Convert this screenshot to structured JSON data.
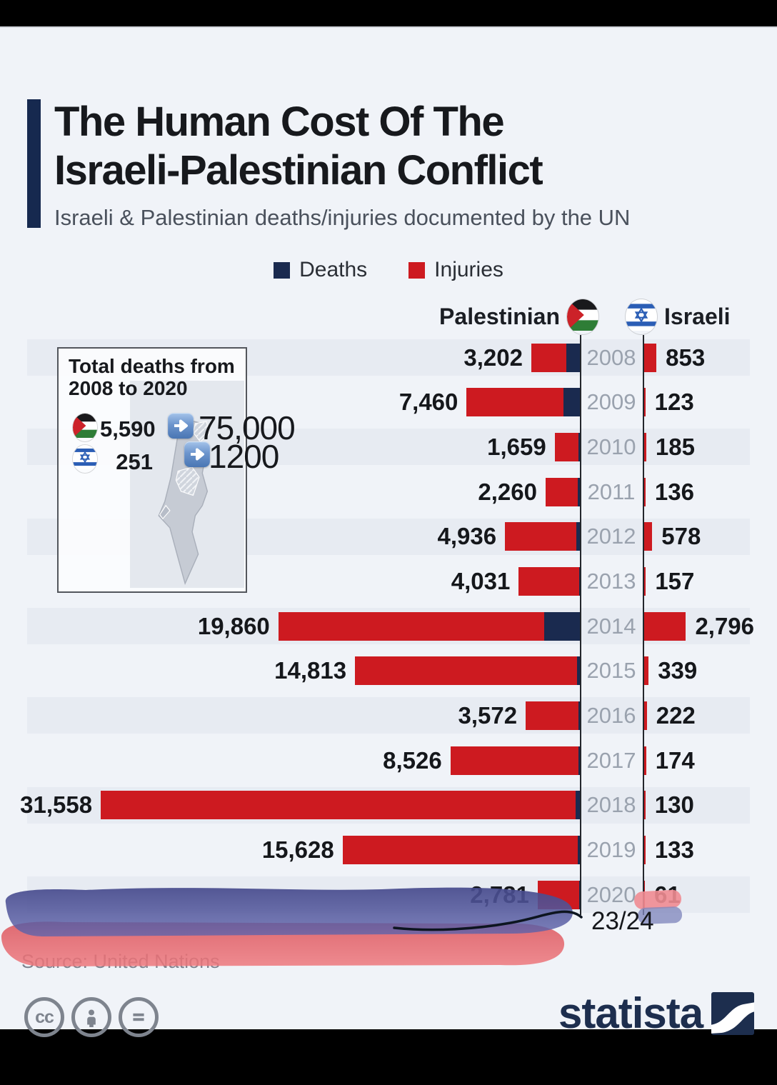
{
  "page": {
    "title_line1": "The Human Cost Of The",
    "title_line2": "Israeli-Palestinian Conflict",
    "subtitle": "Israeli & Palestinian deaths/injuries documented by the UN",
    "source": "Source: United Nations",
    "brand": "statista",
    "handwritten_note": "23/24"
  },
  "legend": {
    "deaths_label": "Deaths",
    "injuries_label": "Injuries",
    "deaths_color": "#1a2a4f",
    "injuries_color": "#cd1a20"
  },
  "columns": {
    "left_label": "Palestinian",
    "right_label": "Israeli"
  },
  "inset": {
    "title_line1": "Total deaths from",
    "title_line2": "2008 to 2020",
    "palestinian_total_deaths": "5,590",
    "palestinian_annotation": "75,000",
    "israeli_total_deaths": "251",
    "israeli_annotation": "1200"
  },
  "chart_data": {
    "type": "bar",
    "orientation": "horizontal-diverging",
    "title": "Israeli & Palestinian deaths/injuries documented by the UN",
    "categories": [
      2008,
      2009,
      2010,
      2011,
      2012,
      2013,
      2014,
      2015,
      2016,
      2017,
      2018,
      2019,
      2020
    ],
    "series": [
      {
        "name": "Palestinian injuries",
        "color": "#cd1a20",
        "values": [
          3202,
          7460,
          1659,
          2260,
          4936,
          4031,
          19860,
          14813,
          3572,
          8526,
          31558,
          15628,
          2781
        ]
      },
      {
        "name": "Palestinian deaths (navy bar segment, unlabeled, estimated from pixels)",
        "color": "#1a2a4f",
        "values": [
          912,
          1066,
          87,
          118,
          255,
          39,
          2329,
          174,
          109,
          78,
          299,
          135,
          30
        ]
      },
      {
        "name": "Israeli injuries",
        "color": "#cd1a20",
        "values": [
          853,
          123,
          185,
          136,
          578,
          157,
          2796,
          339,
          222,
          174,
          130,
          133,
          61
        ]
      }
    ],
    "legend_position": "top",
    "value_label_format": "thousands-comma",
    "grid": "alternating row bands on even years"
  }
}
